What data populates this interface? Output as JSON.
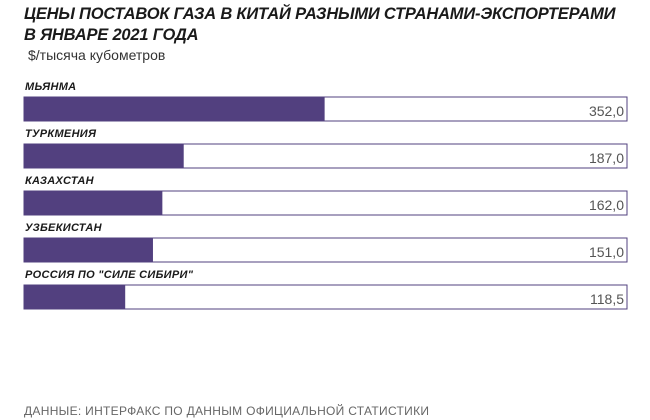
{
  "header": {
    "title_line1": "ЦЕНЫ ПОСТАВОК ГАЗА В КИТАЙ РАЗНЫМИ СТРАНАМИ-ЭКСПОРТЕРАМИ",
    "title_line2": "В ЯНВАРЕ 2021 ГОДА",
    "unit": "$/тысяча кубометров"
  },
  "footer": {
    "source": "ДАННЫЕ: ИНТЕРФАКС ПО ДАННЫМ ОФИЦИАЛЬНОЙ СТАТИСТИКИ"
  },
  "colors": {
    "bar": "#52407f",
    "frame": "#52407f"
  },
  "chart_data": {
    "type": "bar",
    "orientation": "horizontal",
    "title": "ЦЕНЫ ПОСТАВОК ГАЗА В КИТАЙ РАЗНЫМИ СТРАНАМИ-ЭКСПОРТЕРАМИ В ЯНВАРЕ 2021 ГОДА",
    "ylabel": "$/тысяча кубометров",
    "categories": [
      "МЬЯНМА",
      "ТУРКМЕНИЯ",
      "КАЗАХСТАН",
      "УЗБЕКИСТАН",
      "РОССИЯ ПО \"СИЛЕ СИБИРИ\""
    ],
    "values": [
      352.0,
      187.0,
      162.0,
      151.0,
      118.5
    ],
    "value_labels": [
      "352,0",
      "187,0",
      "162,0",
      "151,0",
      "118,5"
    ],
    "xlim": [
      0,
      507
    ],
    "grid": false,
    "legend": "none"
  }
}
